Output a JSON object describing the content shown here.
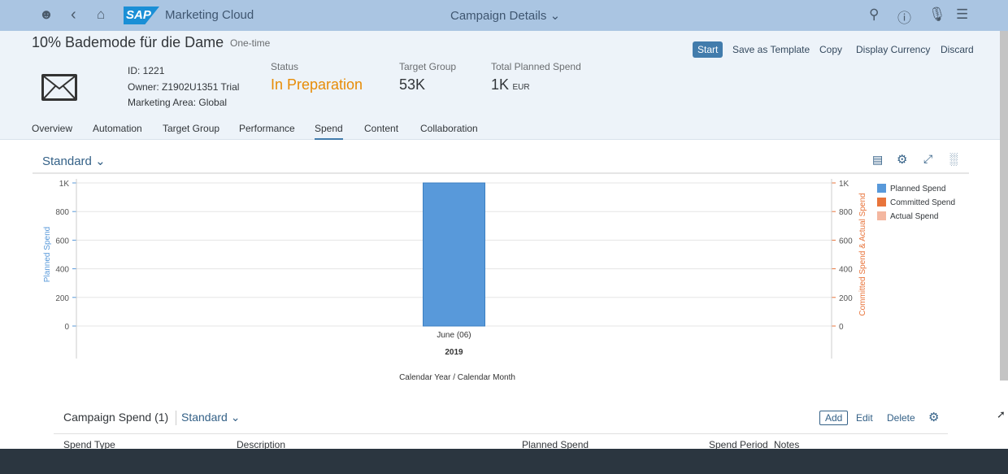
{
  "shell": {
    "app_title": "Marketing Cloud",
    "page_title": "Campaign Details",
    "logo": "SAP"
  },
  "campaign": {
    "title": "10% Bademode für die Dame",
    "type": "One-time",
    "id": "ID: 1221",
    "owner": "Owner: Z1902U1351 Trial",
    "area": "Marketing Area: Global",
    "status_label": "Status",
    "status_value": "In Preparation",
    "tg_label": "Target Group",
    "tg_value": "53K",
    "spend_label": "Total Planned Spend",
    "spend_value": "1K",
    "spend_currency": "EUR"
  },
  "actions": {
    "start": "Start",
    "save_template": "Save as Template",
    "copy": "Copy",
    "display_currency": "Display Currency",
    "discard": "Discard"
  },
  "tabs": [
    "Overview",
    "Automation",
    "Target Group",
    "Performance",
    "Spend",
    "Content",
    "Collaboration"
  ],
  "variant": "Standard",
  "colors": {
    "planned": "#5899da",
    "committed": "#e8743b",
    "actual": "#f4b7a0",
    "status": "#e78c07"
  },
  "chart_data": {
    "type": "bar",
    "categories": [
      "June (06)"
    ],
    "category_group": "2019",
    "xlabel": "Calendar Year / Calendar Month",
    "ylabel": "Planned Spend",
    "y2label": "Committed Spend & Actual Spend",
    "ylim": [
      0,
      1000
    ],
    "yticks": [
      "0",
      "200",
      "400",
      "600",
      "800",
      "1K"
    ],
    "series": [
      {
        "name": "Planned Spend",
        "values": [
          1000
        ]
      },
      {
        "name": "Committed Spend",
        "values": [
          0
        ]
      },
      {
        "name": "Actual Spend",
        "values": [
          0
        ]
      }
    ],
    "legend": "right"
  },
  "table": {
    "title": "Campaign Spend (1)",
    "variant": "Standard",
    "add": "Add",
    "edit": "Edit",
    "delete": "Delete",
    "columns": [
      "Spend Type",
      "Description",
      "Planned Spend",
      "Spend Period",
      "Notes"
    ]
  }
}
